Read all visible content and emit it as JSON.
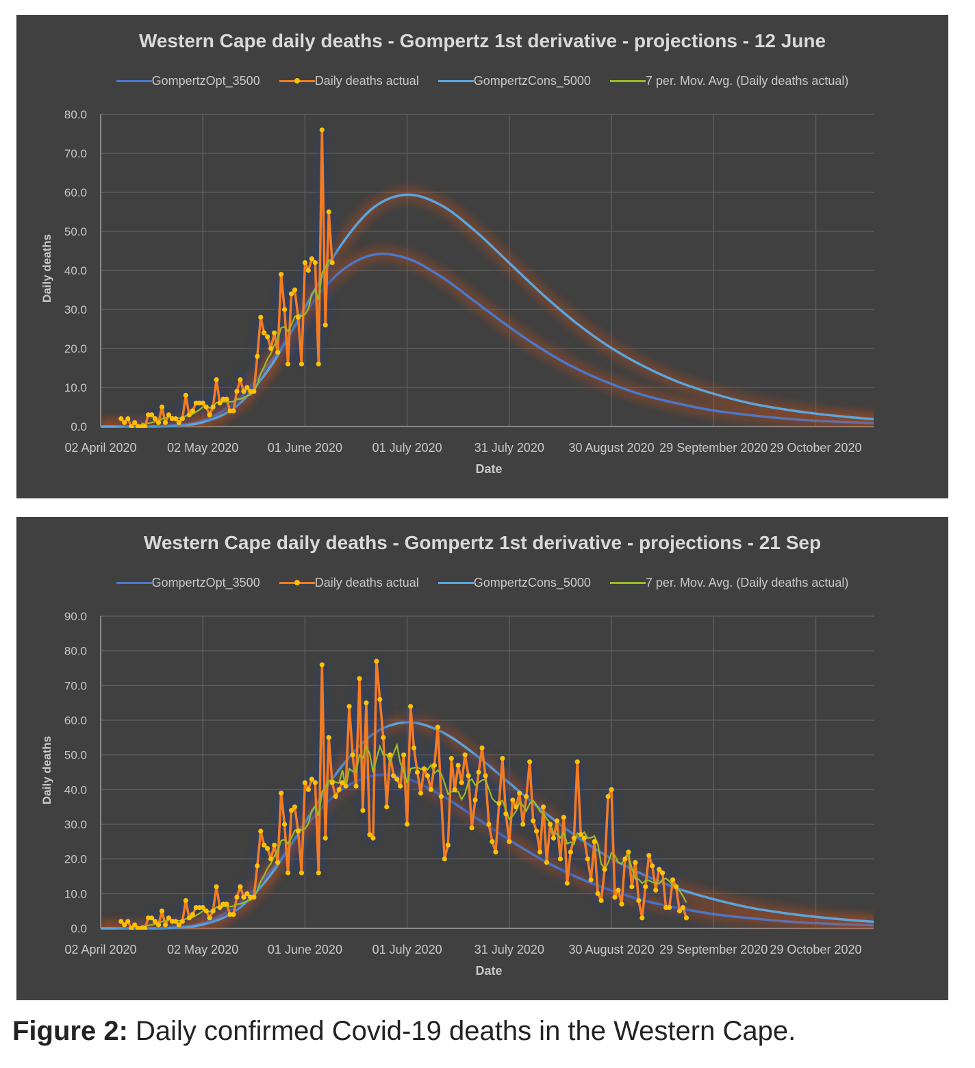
{
  "caption": {
    "label": "Figure 2:",
    "text": " Daily confirmed Covid-19 deaths in the Western Cape."
  },
  "colors": {
    "opt": "#4a78cc",
    "cons": "#5aa6df",
    "actual": "#f47b20",
    "marker": "#ffc000",
    "mavg": "#9bbb22",
    "background": "#404040",
    "grid": "#5c5c5c"
  },
  "chart_data": [
    {
      "type": "line",
      "title": "Western Cape daily deaths - Gompertz 1st derivative - projections - 12 June",
      "xlabel": "Date",
      "ylabel": "Daily deaths",
      "x_unit": "days since 02 April 2020",
      "xlim": [
        0,
        227
      ],
      "ylim": [
        0,
        80
      ],
      "grid": true,
      "legend_position": "top",
      "y_ticks": [
        0,
        10,
        20,
        30,
        40,
        50,
        60,
        70,
        80
      ],
      "y_tick_labels": [
        "0.0",
        "10.0",
        "20.0",
        "30.0",
        "40.0",
        "50.0",
        "60.0",
        "70.0",
        "80.0"
      ],
      "x_ticks": [
        0,
        30,
        60,
        90,
        120,
        150,
        180,
        210
      ],
      "x_tick_labels": [
        "02 April 2020",
        "02 May 2020",
        "01 June 2020",
        "01 July 2020",
        "31 July 2020",
        "30 August 2020",
        "29 September 2020",
        "29 October 2020"
      ],
      "legend": [
        "GompertzOpt_3500",
        "Daily deaths actual",
        "GompertzCons_5000",
        "7 per. Mov. Avg. (Daily deaths actual)"
      ],
      "moving_average_period": 7,
      "actual_x_start": 6,
      "actual_count": 63
    },
    {
      "type": "line",
      "title": "Western Cape daily deaths - Gompertz 1st derivative - projections - 21 Sep",
      "xlabel": "Date",
      "ylabel": "Daily deaths",
      "x_unit": "days since 02 April 2020",
      "xlim": [
        0,
        227
      ],
      "ylim": [
        0,
        90
      ],
      "grid": true,
      "legend_position": "top",
      "y_ticks": [
        0,
        10,
        20,
        30,
        40,
        50,
        60,
        70,
        80,
        90
      ],
      "y_tick_labels": [
        "0.0",
        "10.0",
        "20.0",
        "30.0",
        "40.0",
        "50.0",
        "60.0",
        "70.0",
        "80.0",
        "90.0"
      ],
      "x_ticks": [
        0,
        30,
        60,
        90,
        120,
        150,
        180,
        210
      ],
      "x_tick_labels": [
        "02 April 2020",
        "02 May 2020",
        "01 June 2020",
        "01 July 2020",
        "31 July 2020",
        "30 August 2020",
        "29 September 2020",
        "29 October 2020"
      ],
      "legend": [
        "GompertzOpt_3500",
        "Daily deaths actual",
        "GompertzCons_5000",
        "7 per. Mov. Avg. (Daily deaths actual)"
      ],
      "moving_average_period": 7,
      "actual_x_start": 6,
      "actual_count": 167
    }
  ],
  "series": {
    "gompertz_x": [
      0,
      10,
      20,
      30,
      40,
      50,
      60,
      70,
      80,
      90,
      100,
      110,
      120,
      130,
      140,
      150,
      160,
      170,
      180,
      190,
      200,
      210,
      220,
      230
    ],
    "GompertzOpt_3500": [
      0,
      0,
      0.2,
      1.5,
      6.6,
      16.7,
      29.2,
      39.4,
      44.0,
      43.1,
      38.4,
      32.0,
      25.5,
      19.6,
      14.7,
      10.9,
      7.9,
      5.8,
      4.1,
      3.0,
      2.1,
      1.5,
      1.1,
      0.8
    ],
    "GompertzCons_5000": [
      0,
      0,
      0.1,
      1.1,
      5.3,
      15.5,
      30.5,
      45.7,
      56.0,
      59.4,
      56.7,
      50.1,
      41.9,
      33.7,
      26.3,
      20.1,
      15.2,
      11.3,
      8.4,
      6.1,
      4.5,
      3.3,
      2.4,
      1.7
    ],
    "Daily deaths actual": [
      2,
      1,
      2,
      0,
      1,
      0,
      0,
      0,
      3,
      3,
      2,
      1,
      5,
      1,
      3,
      2,
      2,
      1,
      2,
      8,
      3,
      4,
      6,
      6,
      6,
      5,
      3,
      5,
      12,
      6,
      7,
      7,
      4,
      4,
      9,
      12,
      9,
      10,
      9,
      9,
      18,
      28,
      24,
      23,
      20,
      24,
      19,
      39,
      30,
      16,
      34,
      35,
      28,
      16,
      42,
      40,
      43,
      42,
      16,
      76,
      26,
      55,
      42,
      38,
      40,
      42,
      41,
      64,
      50,
      41,
      72,
      34,
      65,
      27,
      26,
      77,
      66,
      55,
      35,
      50,
      44,
      43,
      41,
      50,
      30,
      64,
      52,
      45,
      39,
      46,
      44,
      40,
      47,
      58,
      38,
      20,
      24,
      49,
      40,
      47,
      42,
      50,
      44,
      29,
      37,
      45,
      52,
      44,
      30,
      25,
      22,
      36,
      49,
      33,
      25,
      37,
      35,
      39,
      30,
      38,
      48,
      31,
      28,
      22,
      35,
      19,
      30,
      26,
      31,
      20,
      32,
      13,
      22,
      26,
      48,
      27,
      26,
      20,
      14,
      25,
      10,
      8,
      17,
      38,
      40,
      9,
      11,
      7,
      20,
      22,
      12,
      19,
      8,
      3,
      12,
      21,
      18,
      11,
      17,
      16,
      6,
      6,
      14,
      12,
      5,
      6,
      3
    ]
  }
}
